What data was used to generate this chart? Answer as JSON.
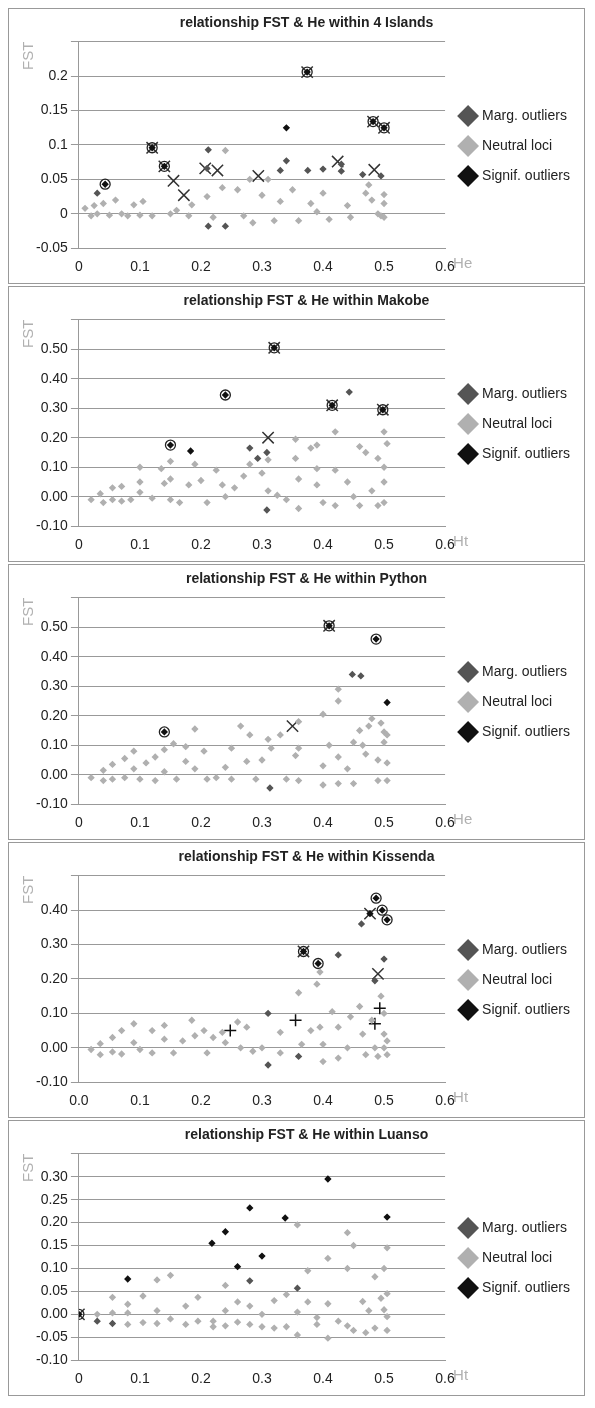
{
  "chart_data": [
    {
      "type": "scatter",
      "title": "relationship FST & He within 4 Islands",
      "xlabel": "He",
      "ylabel": "FST",
      "xlim": [
        0,
        0.6
      ],
      "xticks": [
        0,
        0.1,
        0.2,
        0.3,
        0.4,
        0.5,
        0.6
      ],
      "ylim": [
        -0.05,
        0.25
      ],
      "yticks": [
        -0.05,
        0,
        0.05,
        0.1,
        0.15,
        0.2,
        {
          "value": 0.25,
          "label": null
        }
      ],
      "grid": "y",
      "legend": "right",
      "series": [
        {
          "color": "#555555",
          "marker": "diamond",
          "x": [
            0.34,
            0.33,
            0.375,
            0.4,
            0.43,
            0.43,
            0.465,
            0.495,
            0.212,
            0.212,
            0.24,
            0.03,
            0.21
          ],
          "values": [
            0.077,
            0.063,
            0.063,
            0.065,
            0.072,
            0.062,
            0.057,
            0.055,
            0.093,
            -0.018,
            -0.018,
            0.03,
            0.066
          ],
          "name": "Marg. outliers"
        },
        {
          "color": "#b0b0b0",
          "marker": "diamond",
          "name": "Neutral loci",
          "x": [
            0.01,
            0.02,
            0.025,
            0.03,
            0.04,
            0.05,
            0.06,
            0.07,
            0.08,
            0.09,
            0.1,
            0.105,
            0.12,
            0.15,
            0.16,
            0.18,
            0.185,
            0.21,
            0.22,
            0.235,
            0.24,
            0.26,
            0.27,
            0.28,
            0.285,
            0.3,
            0.31,
            0.32,
            0.33,
            0.35,
            0.36,
            0.38,
            0.39,
            0.4,
            0.41,
            0.44,
            0.445,
            0.47,
            0.475,
            0.48,
            0.49,
            0.495,
            0.5,
            0.5,
            0.5
          ],
          "values": [
            0.008,
            -0.003,
            0.012,
            0,
            0.015,
            -0.002,
            0.02,
            0,
            -0.003,
            0.013,
            -0.002,
            0.018,
            -0.003,
            0,
            0.005,
            -0.003,
            0.013,
            0.025,
            -0.005,
            0.038,
            0.092,
            0.035,
            -0.003,
            0.05,
            -0.013,
            0.027,
            0.05,
            -0.01,
            0.018,
            0.035,
            -0.01,
            0.015,
            0.003,
            0.03,
            -0.008,
            0.012,
            -0.005,
            0.03,
            0.042,
            0.02,
            0,
            -0.003,
            0.015,
            0.028,
            -0.005
          ]
        },
        {
          "color": "#111111",
          "marker": "diamond",
          "name": "Signif. outliers",
          "x": [
            0.043,
            0.12,
            0.14,
            0.374,
            0.482,
            0.5,
            0.34
          ],
          "values": [
            0.043,
            0.096,
            0.069,
            0.206,
            0.134,
            0.125,
            0.125
          ]
        },
        {
          "color": "#222222",
          "marker": "circle",
          "x": [
            0.043,
            0.12,
            0.14,
            0.374,
            0.482,
            0.5
          ],
          "values": [
            0.043,
            0.096,
            0.069,
            0.206,
            0.134,
            0.125
          ]
        },
        {
          "color": "#333333",
          "marker": "cross",
          "x": [
            0.12,
            0.14,
            0.155,
            0.172,
            0.207,
            0.227,
            0.294,
            0.374,
            0.424,
            0.482,
            0.484,
            0.5
          ],
          "values": [
            0.096,
            0.069,
            0.048,
            0.027,
            0.066,
            0.063,
            0.055,
            0.206,
            0.076,
            0.134,
            0.064,
            0.125
          ]
        }
      ]
    },
    {
      "type": "scatter",
      "title": "relationship FST & He within Makobe",
      "xlabel": "Ht",
      "ylabel": "FST",
      "xlim": [
        0,
        0.6
      ],
      "xticks": [
        0,
        0.1,
        0.2,
        0.3,
        0.4,
        0.5,
        0.6
      ],
      "ylim": [
        -0.1,
        0.6
      ],
      "yticks": [
        {
          "value": -0.1,
          "label": "-0.10"
        },
        {
          "value": 0,
          "label": "0.00"
        },
        {
          "value": 0.1,
          "label": "0.10"
        },
        {
          "value": 0.2,
          "label": "0.20"
        },
        {
          "value": 0.3,
          "label": "0.30"
        },
        {
          "value": 0.4,
          "label": "0.40"
        },
        {
          "value": 0.5,
          "label": "0.50"
        },
        {
          "value": 0.6,
          "label": null
        }
      ],
      "grid": "y",
      "legend": "right",
      "series": [
        {
          "color": "#555555",
          "marker": "diamond",
          "name": "Marg. outliers",
          "x": [
            0.28,
            0.293,
            0.308,
            0.443,
            0.308
          ],
          "values": [
            0.165,
            0.13,
            0.15,
            0.355,
            -0.045
          ]
        },
        {
          "color": "#b0b0b0",
          "marker": "diamond",
          "name": "Neutral loci",
          "x": [
            0.02,
            0.035,
            0.04,
            0.055,
            0.055,
            0.07,
            0.07,
            0.085,
            0.1,
            0.1,
            0.1,
            0.12,
            0.135,
            0.14,
            0.15,
            0.15,
            0.15,
            0.165,
            0.18,
            0.19,
            0.2,
            0.21,
            0.225,
            0.235,
            0.24,
            0.255,
            0.27,
            0.28,
            0.3,
            0.31,
            0.31,
            0.325,
            0.34,
            0.355,
            0.355,
            0.36,
            0.36,
            0.38,
            0.39,
            0.39,
            0.39,
            0.4,
            0.42,
            0.42,
            0.42,
            0.44,
            0.45,
            0.46,
            0.46,
            0.47,
            0.48,
            0.49,
            0.49,
            0.5,
            0.5,
            0.5,
            0.5,
            0.505
          ],
          "values": [
            -0.01,
            0.01,
            -0.02,
            0.03,
            -0.01,
            0.035,
            -0.015,
            -0.01,
            0.05,
            0.1,
            0.015,
            -0.005,
            0.095,
            0.045,
            0.12,
            0.06,
            -0.01,
            -0.02,
            0.04,
            0.11,
            0.055,
            -0.02,
            0.09,
            0.04,
            0,
            0.03,
            0.07,
            0.11,
            0.08,
            0.125,
            0.02,
            0.005,
            -0.01,
            0.195,
            0.13,
            0.06,
            -0.04,
            0.165,
            0.175,
            0.04,
            0.095,
            -0.02,
            0.22,
            0.09,
            -0.03,
            0.05,
            0,
            0.17,
            -0.03,
            0.15,
            0.02,
            0.13,
            -0.03,
            0.22,
            0.1,
            0.05,
            -0.02,
            0.18
          ]
        },
        {
          "color": "#111111",
          "marker": "diamond",
          "name": "Signif. outliers",
          "x": [
            0.15,
            0.24,
            0.32,
            0.415,
            0.498,
            0.183
          ],
          "values": [
            0.175,
            0.345,
            0.505,
            0.31,
            0.295,
            0.155
          ]
        },
        {
          "color": "#222222",
          "marker": "circle",
          "x": [
            0.15,
            0.24,
            0.32,
            0.415,
            0.498
          ],
          "values": [
            0.175,
            0.345,
            0.505,
            0.31,
            0.295
          ]
        },
        {
          "color": "#333333",
          "marker": "cross",
          "x": [
            0.31,
            0.32,
            0.415,
            0.498
          ],
          "values": [
            0.2,
            0.505,
            0.31,
            0.295
          ]
        }
      ]
    },
    {
      "type": "scatter",
      "title": "relationship FST & He within Python",
      "xlabel": "He",
      "ylabel": "FST",
      "xlim": [
        0,
        0.6
      ],
      "xticks": [
        0,
        0.1,
        0.2,
        0.3,
        0.4,
        0.5,
        0.6
      ],
      "ylim": [
        -0.1,
        0.6
      ],
      "yticks": [
        {
          "value": -0.1,
          "label": "-0.10"
        },
        {
          "value": 0,
          "label": "0.00"
        },
        {
          "value": 0.1,
          "label": "0.10"
        },
        {
          "value": 0.2,
          "label": "0.20"
        },
        {
          "value": 0.3,
          "label": "0.30"
        },
        {
          "value": 0.4,
          "label": "0.40"
        },
        {
          "value": 0.5,
          "label": "0.50"
        },
        {
          "value": 0.6,
          "label": null
        }
      ],
      "grid": "y",
      "legend": "right",
      "series": [
        {
          "color": "#555555",
          "marker": "diamond",
          "name": "Marg. outliers",
          "x": [
            0.448,
            0.462,
            0.313
          ],
          "values": [
            0.34,
            0.335,
            -0.045
          ]
        },
        {
          "color": "#b0b0b0",
          "marker": "diamond",
          "name": "Neutral loci",
          "x": [
            0.02,
            0.04,
            0.04,
            0.055,
            0.055,
            0.075,
            0.075,
            0.09,
            0.09,
            0.1,
            0.11,
            0.125,
            0.125,
            0.14,
            0.14,
            0.155,
            0.16,
            0.175,
            0.175,
            0.19,
            0.19,
            0.205,
            0.21,
            0.225,
            0.24,
            0.25,
            0.25,
            0.265,
            0.275,
            0.28,
            0.29,
            0.3,
            0.31,
            0.315,
            0.33,
            0.34,
            0.355,
            0.36,
            0.36,
            0.36,
            0.4,
            0.4,
            0.4,
            0.41,
            0.425,
            0.425,
            0.425,
            0.425,
            0.44,
            0.45,
            0.45,
            0.46,
            0.465,
            0.47,
            0.475,
            0.48,
            0.49,
            0.49,
            0.495,
            0.5,
            0.5,
            0.505,
            0.505,
            0.505
          ],
          "values": [
            -0.01,
            0.015,
            -0.02,
            0.035,
            -0.015,
            0.055,
            -0.01,
            0.08,
            0.02,
            -0.015,
            0.04,
            0.06,
            -0.02,
            0.085,
            0.01,
            0.105,
            -0.015,
            0.095,
            0.045,
            0.155,
            0.02,
            0.08,
            -0.015,
            -0.01,
            0.025,
            0.09,
            -0.015,
            0.165,
            0.045,
            0.135,
            -0.015,
            0.05,
            0.12,
            0.09,
            0.135,
            -0.015,
            0.065,
            0.18,
            0.09,
            -0.02,
            0.205,
            0.03,
            -0.035,
            0.1,
            0.29,
            0.25,
            0.06,
            -0.03,
            0.02,
            0.11,
            -0.03,
            0.15,
            0.1,
            0.07,
            0.165,
            0.19,
            0.05,
            -0.02,
            0.175,
            0.145,
            0.11,
            0.135,
            0.04,
            -0.02
          ]
        },
        {
          "color": "#111111",
          "marker": "diamond",
          "name": "Signif. outliers",
          "x": [
            0.14,
            0.41,
            0.487,
            0.505
          ],
          "values": [
            0.145,
            0.505,
            0.46,
            0.245
          ]
        },
        {
          "color": "#222222",
          "marker": "circle",
          "x": [
            0.14,
            0.41,
            0.487
          ],
          "values": [
            0.145,
            0.505,
            0.46
          ]
        },
        {
          "color": "#333333",
          "marker": "cross",
          "x": [
            0.35,
            0.41
          ],
          "values": [
            0.165,
            0.505
          ]
        }
      ]
    },
    {
      "type": "scatter",
      "title": "relationship FST & He within Kissenda",
      "xlabel": "Ht",
      "ylabel": "FST",
      "xlim": [
        0,
        0.6
      ],
      "xticks": [
        {
          "value": 0,
          "label": "0.0"
        },
        0.1,
        0.2,
        0.3,
        0.4,
        0.5,
        0.6
      ],
      "ylim": [
        -0.1,
        0.5
      ],
      "yticks": [
        {
          "value": -0.1,
          "label": "-0.10"
        },
        {
          "value": 0,
          "label": "0.00"
        },
        {
          "value": 0.1,
          "label": "0.10"
        },
        {
          "value": 0.2,
          "label": "0.20"
        },
        {
          "value": 0.3,
          "label": "0.30"
        },
        {
          "value": 0.4,
          "label": "0.40"
        },
        {
          "value": 0.5,
          "label": null
        }
      ],
      "grid": "y",
      "legend": "right",
      "series": [
        {
          "color": "#555555",
          "marker": "diamond",
          "name": "Marg. outliers",
          "x": [
            0.425,
            0.463,
            0.5,
            0.485,
            0.31,
            0.31,
            0.36
          ],
          "values": [
            0.27,
            0.36,
            0.258,
            0.195,
            0.1,
            -0.05,
            -0.025
          ]
        },
        {
          "color": "#b0b0b0",
          "marker": "diamond",
          "name": "Neutral loci",
          "x": [
            0.02,
            0.035,
            0.035,
            0.055,
            0.055,
            0.07,
            0.07,
            0.09,
            0.09,
            0.1,
            0.12,
            0.12,
            0.14,
            0.14,
            0.155,
            0.17,
            0.185,
            0.19,
            0.205,
            0.21,
            0.22,
            0.235,
            0.24,
            0.26,
            0.265,
            0.275,
            0.285,
            0.3,
            0.33,
            0.33,
            0.36,
            0.365,
            0.38,
            0.39,
            0.395,
            0.395,
            0.4,
            0.4,
            0.415,
            0.425,
            0.425,
            0.44,
            0.445,
            0.46,
            0.465,
            0.47,
            0.48,
            0.485,
            0.49,
            0.495,
            0.5,
            0.5,
            0.5,
            0.505,
            0.505
          ],
          "values": [
            -0.005,
            0.012,
            -0.02,
            0.03,
            -0.012,
            0.05,
            -0.018,
            0.07,
            0.015,
            -0.005,
            0.05,
            -0.015,
            0.065,
            0.025,
            -0.015,
            0.02,
            0.08,
            0.035,
            0.05,
            -0.015,
            0.03,
            0.045,
            0.015,
            0.075,
            0,
            0.06,
            -0.01,
            0,
            0.045,
            -0.015,
            0.16,
            0.01,
            0.05,
            0.185,
            0.22,
            0.06,
            0.01,
            -0.04,
            0.105,
            0.06,
            -0.03,
            0,
            0.09,
            0.12,
            0.04,
            -0.02,
            0.08,
            0,
            -0.025,
            0.15,
            0.1,
            0.04,
            0,
            0.02,
            -0.02
          ]
        },
        {
          "color": "#111111",
          "marker": "diamond",
          "name": "Signif. outliers",
          "x": [
            0.368,
            0.392,
            0.487,
            0.497,
            0.505,
            0.477
          ],
          "values": [
            0.28,
            0.245,
            0.435,
            0.4,
            0.372,
            0.39
          ]
        },
        {
          "color": "#222222",
          "marker": "circle",
          "x": [
            0.368,
            0.392,
            0.487,
            0.497,
            0.505
          ],
          "values": [
            0.28,
            0.245,
            0.435,
            0.4,
            0.372
          ]
        },
        {
          "color": "#333333",
          "marker": "cross",
          "x": [
            0.368,
            0.477,
            0.49
          ],
          "values": [
            0.28,
            0.39,
            0.215
          ]
        },
        {
          "color": "#111111",
          "marker": "plus",
          "x": [
            0.248,
            0.355,
            0.485,
            0.493
          ],
          "values": [
            0.05,
            0.08,
            0.07,
            0.115
          ]
        }
      ]
    },
    {
      "type": "scatter",
      "title": "relationship FST & He within Luanso",
      "xlabel": "Ht",
      "ylabel": "FST",
      "xlim": [
        0,
        0.6
      ],
      "xticks": [
        0,
        0.1,
        0.2,
        0.3,
        0.4,
        0.5,
        0.6
      ],
      "ylim": [
        -0.1,
        0.35
      ],
      "yticks": [
        {
          "value": -0.1,
          "label": "-0.10"
        },
        {
          "value": -0.05,
          "label": "-0.05"
        },
        {
          "value": 0,
          "label": "0.00"
        },
        {
          "value": 0.05,
          "label": "0.05"
        },
        {
          "value": 0.1,
          "label": "0.10"
        },
        {
          "value": 0.15,
          "label": "0.15"
        },
        {
          "value": 0.2,
          "label": "0.20"
        },
        {
          "value": 0.25,
          "label": "0.25"
        },
        {
          "value": 0.3,
          "label": "0.30"
        },
        {
          "value": 0.35,
          "label": null
        }
      ],
      "grid": "y",
      "legend": "right",
      "series": [
        {
          "color": "#555555",
          "marker": "diamond",
          "name": "Marg. outliers",
          "x": [
            0.03,
            0.055,
            0.28,
            0.358
          ],
          "values": [
            -0.015,
            -0.02,
            0.073,
            0.057
          ]
        },
        {
          "color": "#b0b0b0",
          "marker": "diamond",
          "name": "Neutral loci",
          "x": [
            0.03,
            0.055,
            0.055,
            0.08,
            0.08,
            0.08,
            0.105,
            0.105,
            0.128,
            0.128,
            0.128,
            0.15,
            0.15,
            0.175,
            0.175,
            0.195,
            0.195,
            0.22,
            0.22,
            0.24,
            0.24,
            0.24,
            0.26,
            0.26,
            0.28,
            0.28,
            0.3,
            0.3,
            0.32,
            0.32,
            0.34,
            0.34,
            0.358,
            0.358,
            0.358,
            0.375,
            0.375,
            0.39,
            0.39,
            0.408,
            0.408,
            0.408,
            0.425,
            0.44,
            0.44,
            0.44,
            0.45,
            0.45,
            0.465,
            0.47,
            0.475,
            0.485,
            0.485,
            0.495,
            0.5,
            0.5,
            0.505,
            0.505,
            0.505,
            0.505
          ],
          "values": [
            0,
            0.037,
            0.003,
            0.022,
            0.003,
            -0.022,
            0.04,
            -0.018,
            0.075,
            0.008,
            -0.02,
            0.085,
            -0.01,
            0.018,
            -0.022,
            0.037,
            -0.015,
            -0.015,
            -0.027,
            0.063,
            0.008,
            -0.025,
            0.027,
            -0.017,
            0.018,
            -0.022,
            0,
            -0.027,
            0.03,
            -0.03,
            0.043,
            -0.027,
            0.195,
            0.005,
            -0.045,
            0.095,
            0.027,
            -0.007,
            -0.022,
            0.122,
            0.023,
            -0.052,
            -0.015,
            0.178,
            0.1,
            -0.025,
            0.15,
            -0.035,
            0.028,
            -0.04,
            0.008,
            0.082,
            -0.03,
            0.035,
            0.1,
            0.01,
            0.145,
            0.045,
            -0.005,
            -0.035
          ]
        },
        {
          "color": "#111111",
          "marker": "diamond",
          "name": "Signif. outliers",
          "x": [
            0,
            0.218,
            0.24,
            0.28,
            0.338,
            0.408,
            0.505,
            0.3,
            0.26,
            0.08
          ],
          "values": [
            0,
            0.155,
            0.18,
            0.232,
            0.21,
            0.295,
            0.212,
            0.127,
            0.104,
            0.077
          ]
        },
        {
          "color": "#222222",
          "marker": "circle",
          "x": [
            0
          ],
          "values": [
            0
          ]
        },
        {
          "color": "#333333",
          "marker": "cross",
          "x": [
            0
          ],
          "values": [
            0
          ]
        }
      ]
    }
  ]
}
